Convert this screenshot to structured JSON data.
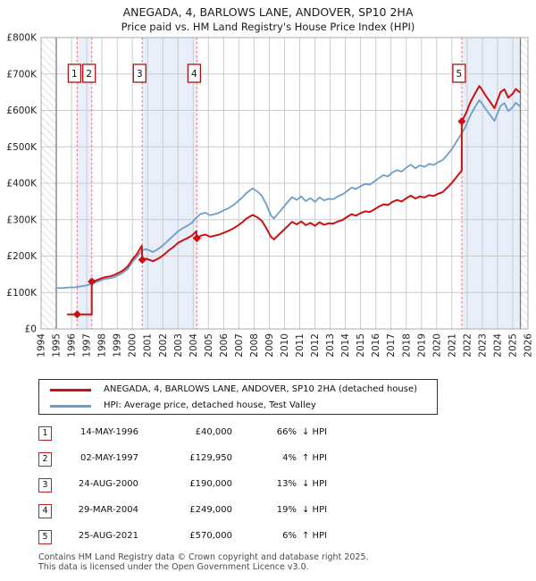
{
  "title": {
    "line1": "ANEGADA, 4, BARLOWS LANE, ANDOVER, SP10 2HA",
    "line2": "Price paid vs. HM Land Registry's House Price Index (HPI)"
  },
  "chart_data": {
    "type": "line",
    "unit": "GBP thousands",
    "x_range": [
      1994,
      2026
    ],
    "y_range": [
      0,
      800
    ],
    "y_ticks": [
      {
        "value": 0,
        "label": "£0"
      },
      {
        "value": 100,
        "label": "£100K"
      },
      {
        "value": 200,
        "label": "£200K"
      },
      {
        "value": 300,
        "label": "£300K"
      },
      {
        "value": 400,
        "label": "£400K"
      },
      {
        "value": 500,
        "label": "£500K"
      },
      {
        "value": 600,
        "label": "£600K"
      },
      {
        "value": 700,
        "label": "£700K"
      },
      {
        "value": 800,
        "label": "£800K"
      }
    ],
    "x_ticks": [
      1994,
      1995,
      1996,
      1997,
      1998,
      1999,
      2000,
      2001,
      2002,
      2003,
      2004,
      2005,
      2006,
      2007,
      2008,
      2009,
      2010,
      2011,
      2012,
      2013,
      2014,
      2015,
      2016,
      2017,
      2018,
      2019,
      2020,
      2021,
      2022,
      2023,
      2024,
      2025,
      2026
    ],
    "grid_color": "#cccccc",
    "plot_border_color": "#aaaaaa",
    "band_color": "#e9effa",
    "hatch_line_color": "#c6c6c6",
    "data_edge_color": "#7a7a7a",
    "event_line_color": "#f28080",
    "event_box_border": "#aa1111",
    "bands": [
      [
        1996.37,
        1997.33
      ],
      [
        2000.65,
        2004.24
      ],
      [
        2021.65,
        2025.5
      ]
    ],
    "hatch_regions": [
      [
        1994,
        1995
      ],
      [
        2025.5,
        2026
      ]
    ],
    "events": [
      {
        "label": "1",
        "x": 1996.37,
        "y": 40
      },
      {
        "label": "2",
        "x": 1997.33,
        "y": 129.95
      },
      {
        "label": "3",
        "x": 2000.65,
        "y": 190
      },
      {
        "label": "4",
        "x": 2004.24,
        "y": 249
      },
      {
        "label": "5",
        "x": 2021.65,
        "y": 570
      }
    ],
    "series": [
      {
        "name": "ANEGADA, 4, BARLOWS LANE, ANDOVER, SP10 2HA (detached house)",
        "color": "#cc1111",
        "width": 2.0,
        "points": [
          [
            1995.75,
            40
          ],
          [
            1996.37,
            40
          ],
          [
            1997.2,
            40
          ],
          [
            1997.33,
            40
          ],
          [
            1997.33,
            129.95
          ],
          [
            1997.6,
            133
          ],
          [
            1997.9,
            138
          ],
          [
            1998.2,
            142
          ],
          [
            1998.5,
            144
          ],
          [
            1998.8,
            148
          ],
          [
            1999.1,
            154
          ],
          [
            1999.4,
            161
          ],
          [
            1999.7,
            172
          ],
          [
            2000.0,
            191
          ],
          [
            2000.3,
            206
          ],
          [
            2000.55,
            224
          ],
          [
            2000.62,
            228
          ],
          [
            2000.65,
            190
          ],
          [
            2000.9,
            193
          ],
          [
            2001.1,
            190
          ],
          [
            2001.35,
            186
          ],
          [
            2001.6,
            191
          ],
          [
            2001.85,
            197
          ],
          [
            2002.1,
            205
          ],
          [
            2002.4,
            216
          ],
          [
            2002.7,
            225
          ],
          [
            2003.0,
            236
          ],
          [
            2003.3,
            243
          ],
          [
            2003.6,
            249
          ],
          [
            2003.9,
            256
          ],
          [
            2004.2,
            268
          ],
          [
            2004.24,
            249
          ],
          [
            2004.5,
            256
          ],
          [
            2004.8,
            259
          ],
          [
            2005.1,
            253
          ],
          [
            2005.4,
            256
          ],
          [
            2005.7,
            259
          ],
          [
            2006.0,
            264
          ],
          [
            2006.3,
            269
          ],
          [
            2006.6,
            275
          ],
          [
            2006.9,
            283
          ],
          [
            2007.2,
            292
          ],
          [
            2007.5,
            303
          ],
          [
            2007.9,
            313
          ],
          [
            2008.2,
            307
          ],
          [
            2008.5,
            297
          ],
          [
            2008.8,
            277
          ],
          [
            2009.1,
            253
          ],
          [
            2009.3,
            246
          ],
          [
            2009.6,
            258
          ],
          [
            2009.9,
            270
          ],
          [
            2010.2,
            282
          ],
          [
            2010.5,
            294
          ],
          [
            2010.8,
            287
          ],
          [
            2011.1,
            295
          ],
          [
            2011.4,
            285
          ],
          [
            2011.7,
            291
          ],
          [
            2012.0,
            283
          ],
          [
            2012.3,
            293
          ],
          [
            2012.6,
            286
          ],
          [
            2012.9,
            290
          ],
          [
            2013.2,
            289
          ],
          [
            2013.5,
            295
          ],
          [
            2013.8,
            299
          ],
          [
            2014.1,
            307
          ],
          [
            2014.4,
            315
          ],
          [
            2014.7,
            311
          ],
          [
            2015.0,
            318
          ],
          [
            2015.3,
            323
          ],
          [
            2015.6,
            321
          ],
          [
            2015.9,
            328
          ],
          [
            2016.2,
            336
          ],
          [
            2016.5,
            342
          ],
          [
            2016.8,
            340
          ],
          [
            2017.1,
            349
          ],
          [
            2017.4,
            354
          ],
          [
            2017.7,
            350
          ],
          [
            2018.0,
            359
          ],
          [
            2018.3,
            366
          ],
          [
            2018.6,
            358
          ],
          [
            2018.9,
            364
          ],
          [
            2019.2,
            361
          ],
          [
            2019.5,
            367
          ],
          [
            2019.8,
            365
          ],
          [
            2020.1,
            371
          ],
          [
            2020.4,
            376
          ],
          [
            2020.7,
            388
          ],
          [
            2021.0,
            401
          ],
          [
            2021.3,
            417
          ],
          [
            2021.65,
            435
          ],
          [
            2021.65,
            570
          ],
          [
            2021.9,
            590
          ],
          [
            2022.2,
            621
          ],
          [
            2022.5,
            645
          ],
          [
            2022.8,
            667
          ],
          [
            2023.0,
            656
          ],
          [
            2023.2,
            642
          ],
          [
            2023.5,
            624
          ],
          [
            2023.8,
            606
          ],
          [
            2024.0,
            628
          ],
          [
            2024.2,
            650
          ],
          [
            2024.45,
            658
          ],
          [
            2024.7,
            635
          ],
          [
            2025.0,
            646
          ],
          [
            2025.2,
            659
          ],
          [
            2025.45,
            650
          ]
        ]
      },
      {
        "name": "HPI: Average price, detached house, Test Valley",
        "color": "#6d9dc9",
        "width": 1.8,
        "points": [
          [
            1995.0,
            113
          ],
          [
            1995.3,
            112
          ],
          [
            1995.6,
            113
          ],
          [
            1995.9,
            114
          ],
          [
            1996.2,
            114
          ],
          [
            1996.5,
            116
          ],
          [
            1996.8,
            118
          ],
          [
            1997.1,
            121
          ],
          [
            1997.33,
            125
          ],
          [
            1997.6,
            128
          ],
          [
            1997.9,
            133
          ],
          [
            1998.2,
            137
          ],
          [
            1998.5,
            139
          ],
          [
            1998.8,
            142
          ],
          [
            1999.1,
            148
          ],
          [
            1999.4,
            155
          ],
          [
            1999.7,
            165
          ],
          [
            2000.0,
            184
          ],
          [
            2000.3,
            198
          ],
          [
            2000.65,
            216
          ],
          [
            2000.9,
            219
          ],
          [
            2001.1,
            216
          ],
          [
            2001.35,
            211
          ],
          [
            2001.6,
            217
          ],
          [
            2001.85,
            224
          ],
          [
            2002.1,
            233
          ],
          [
            2002.4,
            245
          ],
          [
            2002.7,
            256
          ],
          [
            2003.0,
            268
          ],
          [
            2003.3,
            276
          ],
          [
            2003.6,
            283
          ],
          [
            2003.9,
            291
          ],
          [
            2004.24,
            307
          ],
          [
            2004.5,
            316
          ],
          [
            2004.8,
            319
          ],
          [
            2005.1,
            312
          ],
          [
            2005.4,
            315
          ],
          [
            2005.7,
            319
          ],
          [
            2006.0,
            326
          ],
          [
            2006.3,
            331
          ],
          [
            2006.6,
            339
          ],
          [
            2006.9,
            349
          ],
          [
            2007.2,
            360
          ],
          [
            2007.5,
            373
          ],
          [
            2007.9,
            386
          ],
          [
            2008.2,
            378
          ],
          [
            2008.5,
            366
          ],
          [
            2008.8,
            342
          ],
          [
            2009.1,
            312
          ],
          [
            2009.3,
            303
          ],
          [
            2009.6,
            318
          ],
          [
            2009.9,
            333
          ],
          [
            2010.2,
            348
          ],
          [
            2010.5,
            362
          ],
          [
            2010.8,
            354
          ],
          [
            2011.1,
            364
          ],
          [
            2011.4,
            351
          ],
          [
            2011.7,
            359
          ],
          [
            2012.0,
            349
          ],
          [
            2012.3,
            361
          ],
          [
            2012.6,
            353
          ],
          [
            2012.9,
            357
          ],
          [
            2013.2,
            356
          ],
          [
            2013.5,
            364
          ],
          [
            2013.8,
            369
          ],
          [
            2014.1,
            378
          ],
          [
            2014.4,
            388
          ],
          [
            2014.7,
            384
          ],
          [
            2015.0,
            392
          ],
          [
            2015.3,
            398
          ],
          [
            2015.6,
            396
          ],
          [
            2015.9,
            405
          ],
          [
            2016.2,
            414
          ],
          [
            2016.5,
            422
          ],
          [
            2016.8,
            419
          ],
          [
            2017.1,
            430
          ],
          [
            2017.4,
            436
          ],
          [
            2017.7,
            432
          ],
          [
            2018.0,
            443
          ],
          [
            2018.3,
            451
          ],
          [
            2018.6,
            441
          ],
          [
            2018.9,
            449
          ],
          [
            2019.2,
            445
          ],
          [
            2019.5,
            453
          ],
          [
            2019.8,
            450
          ],
          [
            2020.1,
            458
          ],
          [
            2020.4,
            464
          ],
          [
            2020.7,
            478
          ],
          [
            2021.0,
            494
          ],
          [
            2021.3,
            514
          ],
          [
            2021.65,
            537
          ],
          [
            2021.9,
            556
          ],
          [
            2022.2,
            585
          ],
          [
            2022.5,
            608
          ],
          [
            2022.8,
            628
          ],
          [
            2023.0,
            618
          ],
          [
            2023.2,
            605
          ],
          [
            2023.5,
            588
          ],
          [
            2023.8,
            571
          ],
          [
            2024.0,
            592
          ],
          [
            2024.2,
            612
          ],
          [
            2024.45,
            620
          ],
          [
            2024.7,
            598
          ],
          [
            2025.0,
            609
          ],
          [
            2025.2,
            621
          ],
          [
            2025.45,
            612
          ]
        ]
      }
    ]
  },
  "legend": {
    "items": [
      {
        "label": "ANEGADA, 4, BARLOWS LANE, ANDOVER, SP10 2HA (detached house)"
      },
      {
        "label": "HPI: Average price, detached house, Test Valley"
      }
    ]
  },
  "table": {
    "rows": [
      {
        "num": "1",
        "date": "14-MAY-1996",
        "price": "£40,000",
        "pct": "66%",
        "rest": "↓ HPI"
      },
      {
        "num": "2",
        "date": "02-MAY-1997",
        "price": "£129,950",
        "pct": "4%",
        "rest": "↑ HPI"
      },
      {
        "num": "3",
        "date": "24-AUG-2000",
        "price": "£190,000",
        "pct": "13%",
        "rest": "↓ HPI"
      },
      {
        "num": "4",
        "date": "29-MAR-2004",
        "price": "£249,000",
        "pct": "19%",
        "rest": "↓ HPI"
      },
      {
        "num": "5",
        "date": "25-AUG-2021",
        "price": "£570,000",
        "pct": "6%",
        "rest": "↑ HPI"
      }
    ]
  },
  "footer": {
    "line1": "Contains HM Land Registry data © Crown copyright and database right 2025.",
    "line2": "This data is licensed under the Open Government Licence v3.0."
  }
}
